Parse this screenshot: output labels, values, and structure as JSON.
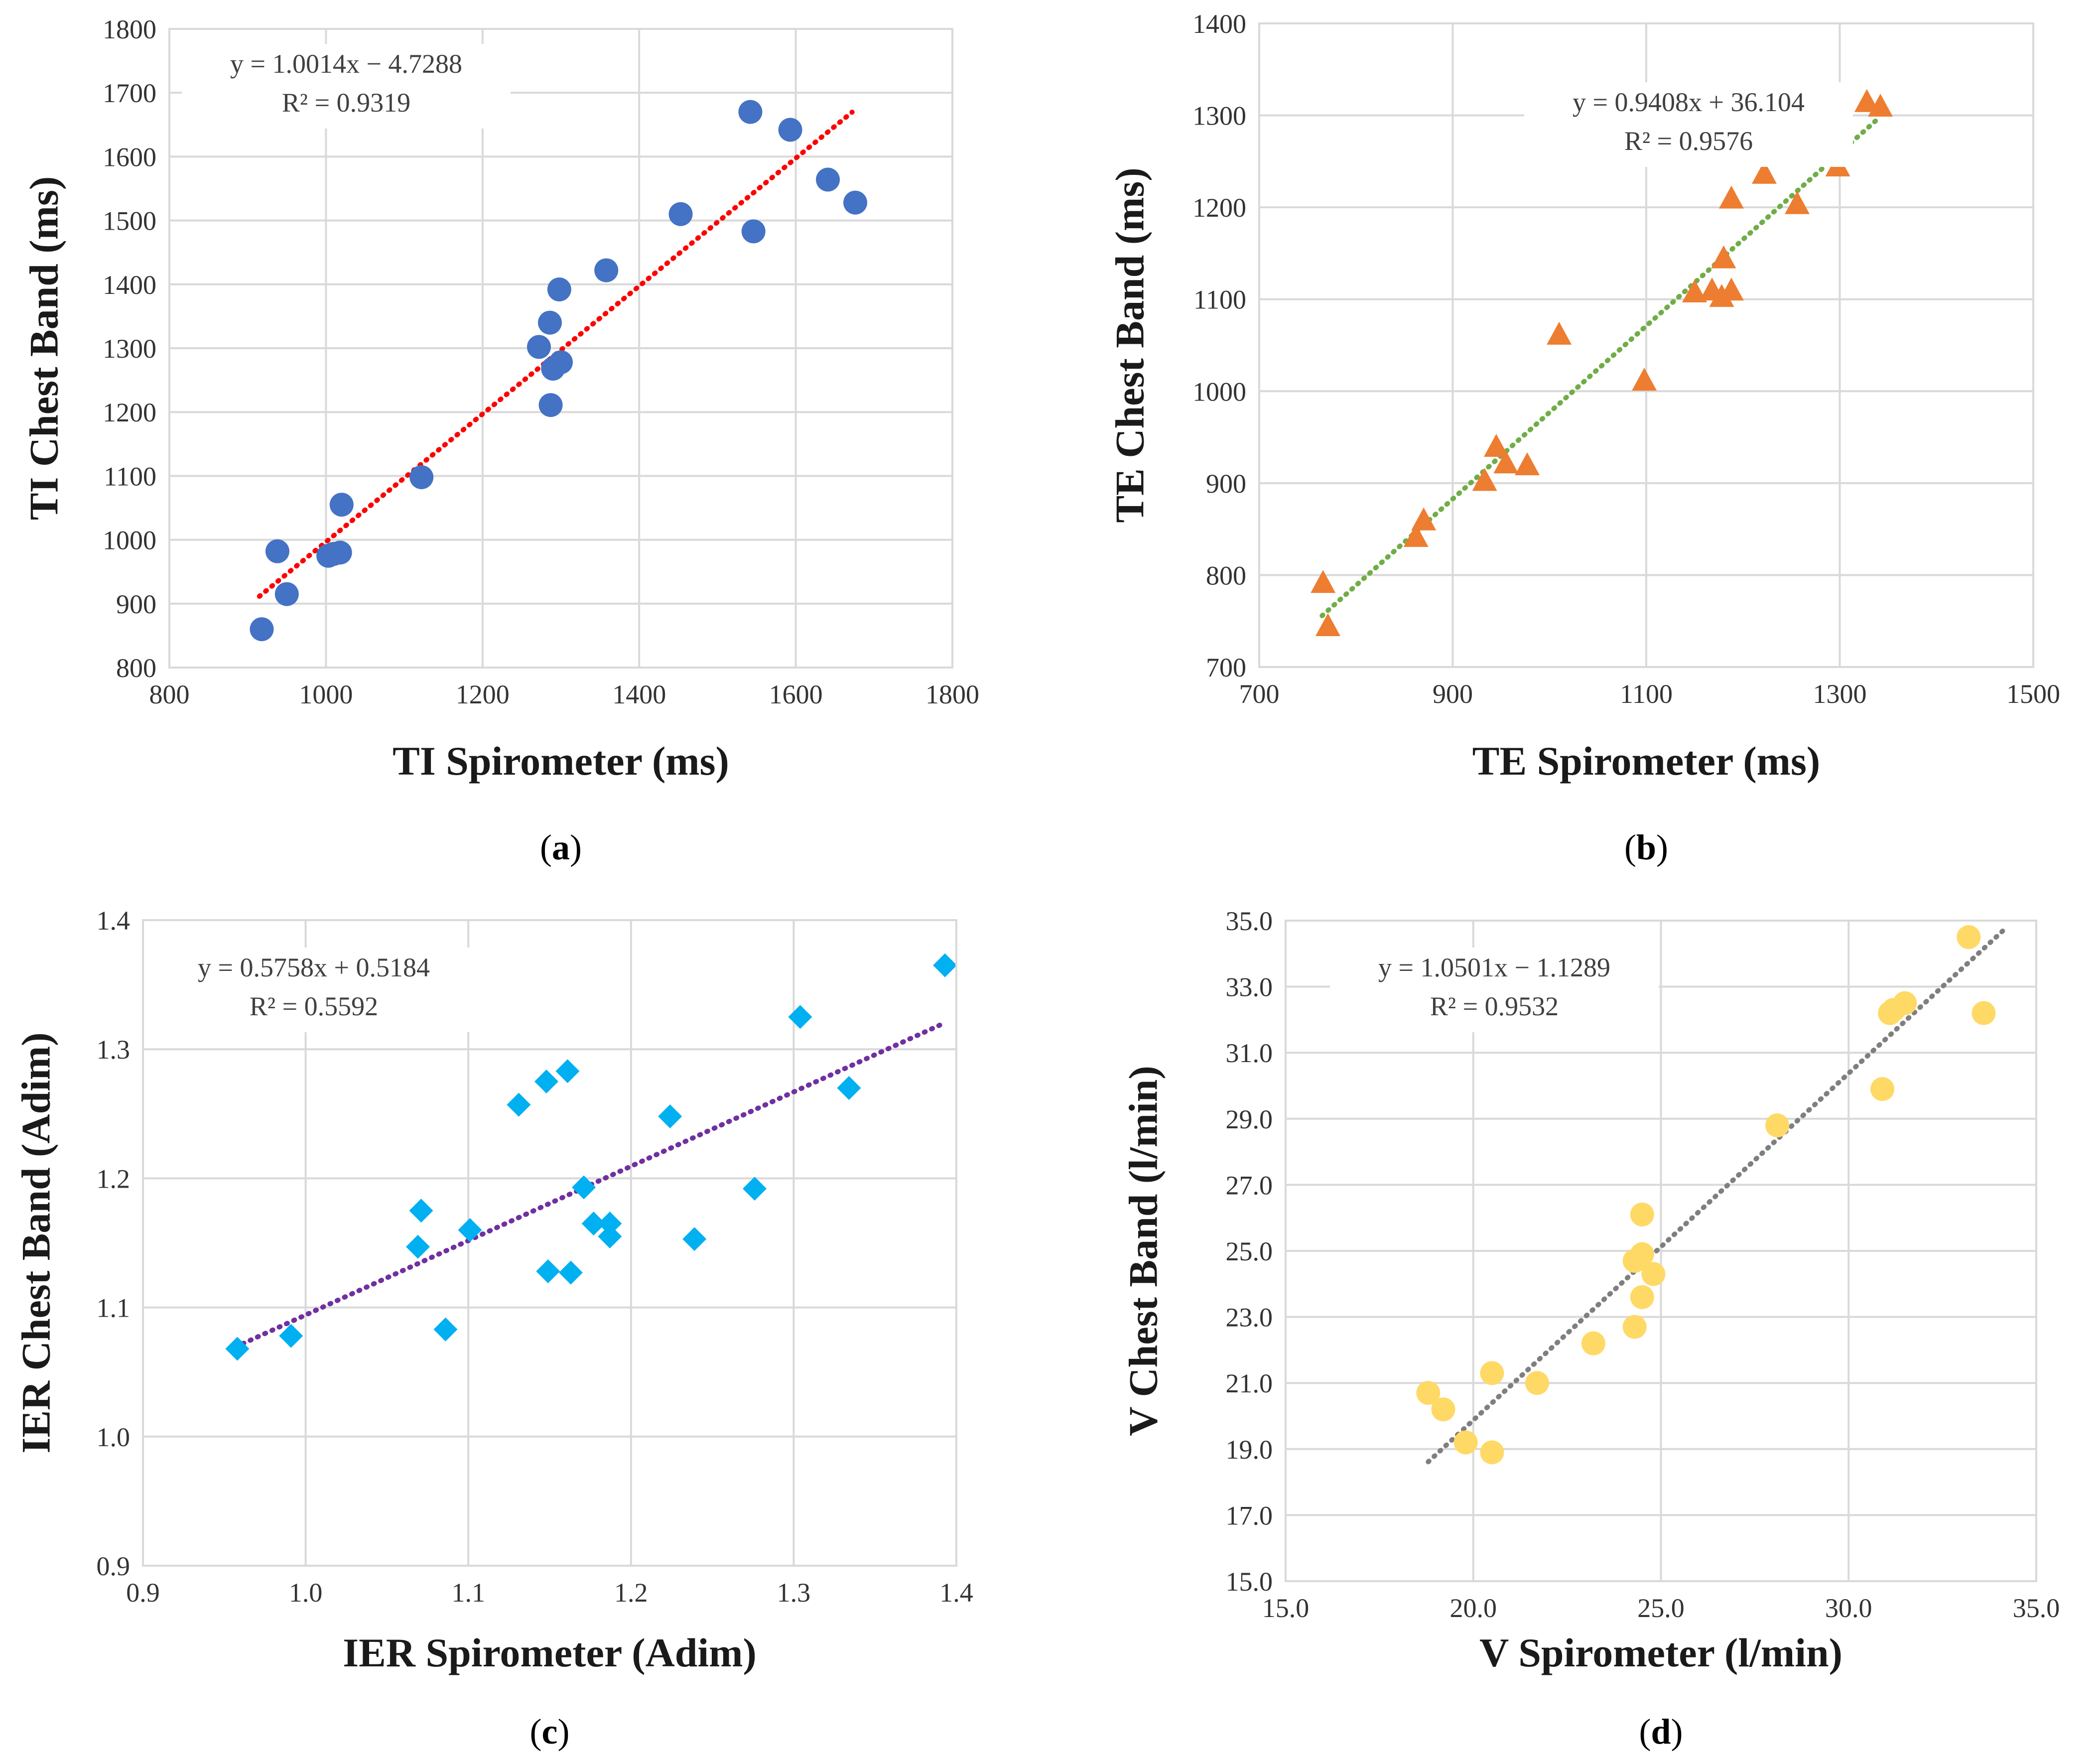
{
  "chart_data": [
    {
      "id": "a",
      "type": "scatter",
      "panel_label": "(a)",
      "xlabel": "TI Spirometer (ms)",
      "ylabel": "TI Chest Band (ms)",
      "xlim": [
        800,
        1800
      ],
      "ylim": [
        800,
        1800
      ],
      "xticks": [
        800,
        1000,
        1200,
        1400,
        1600,
        1800
      ],
      "yticks": [
        800,
        900,
        1000,
        1100,
        1200,
        1300,
        1400,
        1500,
        1600,
        1700,
        1800
      ],
      "tick_decimals": 0,
      "grid": true,
      "marker": "circle",
      "marker_color": "#4472C4",
      "trend_color": "#FF0000",
      "equation": "y = 1.0014x − 4.7288",
      "r_squared": "R² = 0.9319",
      "trendline": {
        "slope": 1.0014,
        "intercept": -4.7288,
        "x_range": [
          915,
          1672
        ]
      },
      "points": [
        [
          918,
          860
        ],
        [
          950,
          915
        ],
        [
          938,
          982
        ],
        [
          1003,
          975
        ],
        [
          1010,
          978
        ],
        [
          1018,
          980
        ],
        [
          1020,
          1055
        ],
        [
          1122,
          1098
        ],
        [
          1272,
          1302
        ],
        [
          1286,
          1340
        ],
        [
          1290,
          1268
        ],
        [
          1298,
          1392
        ],
        [
          1300,
          1278
        ],
        [
          1287,
          1211
        ],
        [
          1358,
          1422
        ],
        [
          1453,
          1510
        ],
        [
          1542,
          1670
        ],
        [
          1546,
          1483
        ],
        [
          1593,
          1642
        ],
        [
          1641,
          1564
        ],
        [
          1676,
          1528
        ]
      ]
    },
    {
      "id": "b",
      "type": "scatter",
      "panel_label": "(b)",
      "xlabel": "TE Spirometer (ms)",
      "ylabel": "TE Chest Band (ms)",
      "xlim": [
        700,
        1500
      ],
      "ylim": [
        700,
        1400
      ],
      "xticks": [
        700,
        900,
        1100,
        1300,
        1500
      ],
      "yticks": [
        700,
        800,
        900,
        1000,
        1100,
        1200,
        1300,
        1400
      ],
      "tick_decimals": 0,
      "grid": true,
      "marker": "triangle",
      "marker_color": "#ED7D31",
      "trend_color": "#70AD47",
      "equation": "y = 0.9408x + 36.104",
      "r_squared": "R² = 0.9576",
      "trendline": {
        "slope": 0.9408,
        "intercept": 36.104,
        "x_range": [
          765,
          1342
        ]
      },
      "points": [
        [
          766,
          792
        ],
        [
          771,
          745
        ],
        [
          862,
          842
        ],
        [
          870,
          860
        ],
        [
          933,
          903
        ],
        [
          945,
          940
        ],
        [
          955,
          922
        ],
        [
          977,
          920
        ],
        [
          1010,
          1062
        ],
        [
          1098,
          1012
        ],
        [
          1150,
          1108
        ],
        [
          1168,
          1110
        ],
        [
          1178,
          1103
        ],
        [
          1180,
          1145
        ],
        [
          1188,
          1110
        ],
        [
          1188,
          1210
        ],
        [
          1222,
          1237
        ],
        [
          1256,
          1204
        ],
        [
          1298,
          1245
        ],
        [
          1328,
          1315
        ],
        [
          1342,
          1310
        ]
      ]
    },
    {
      "id": "c",
      "type": "scatter",
      "panel_label": "(c)",
      "xlabel": "IER Spirometer (Adim)",
      "ylabel": "IER Chest Band (Adim)",
      "xlim": [
        0.9,
        1.4
      ],
      "ylim": [
        0.9,
        1.4
      ],
      "xticks": [
        0.9,
        1.0,
        1.1,
        1.2,
        1.3,
        1.4
      ],
      "yticks": [
        0.9,
        1.0,
        1.1,
        1.2,
        1.3,
        1.4
      ],
      "tick_decimals": 1,
      "grid": true,
      "marker": "diamond",
      "marker_color": "#00B0F0",
      "trend_color": "#7030A0",
      "equation": "y = 0.5758x + 0.5184",
      "r_squared": "R² = 0.5592",
      "trendline": {
        "slope": 0.5758,
        "intercept": 0.5184,
        "x_range": [
          0.957,
          1.392
        ]
      },
      "points": [
        [
          0.958,
          1.068
        ],
        [
          0.991,
          1.078
        ],
        [
          1.069,
          1.147
        ],
        [
          1.071,
          1.175
        ],
        [
          1.086,
          1.083
        ],
        [
          1.101,
          1.16
        ],
        [
          1.131,
          1.257
        ],
        [
          1.148,
          1.275
        ],
        [
          1.149,
          1.128
        ],
        [
          1.161,
          1.283
        ],
        [
          1.163,
          1.127
        ],
        [
          1.171,
          1.193
        ],
        [
          1.177,
          1.165
        ],
        [
          1.187,
          1.165
        ],
        [
          1.187,
          1.155
        ],
        [
          1.224,
          1.248
        ],
        [
          1.239,
          1.153
        ],
        [
          1.276,
          1.192
        ],
        [
          1.304,
          1.325
        ],
        [
          1.334,
          1.27
        ],
        [
          1.393,
          1.365
        ]
      ]
    },
    {
      "id": "d",
      "type": "scatter",
      "panel_label": "(d)",
      "xlabel": "V Spirometer (l/min)",
      "ylabel": "V Chest Band (l/min)",
      "xlim": [
        15,
        35
      ],
      "ylim": [
        15,
        35
      ],
      "xticks": [
        15,
        20,
        25,
        30,
        35
      ],
      "yticks": [
        15,
        17,
        19,
        21,
        23,
        25,
        27,
        29,
        31,
        33,
        35
      ],
      "tick_decimals": 1,
      "grid": true,
      "marker": "circle",
      "marker_color": "#FFD966",
      "trend_color": "#7F7F7F",
      "equation": "y = 1.0501x − 1.1289",
      "r_squared": "R² = 0.9532",
      "trendline": {
        "slope": 1.0501,
        "intercept": -1.1289,
        "x_range": [
          18.8,
          34.2
        ]
      },
      "points": [
        [
          18.8,
          20.7
        ],
        [
          19.2,
          20.2
        ],
        [
          19.8,
          19.2
        ],
        [
          20.5,
          21.3
        ],
        [
          20.5,
          18.9
        ],
        [
          21.7,
          21.0
        ],
        [
          23.2,
          22.2
        ],
        [
          24.3,
          22.7
        ],
        [
          24.3,
          24.7
        ],
        [
          24.5,
          24.9
        ],
        [
          24.5,
          26.1
        ],
        [
          24.5,
          23.6
        ],
        [
          24.8,
          24.3
        ],
        [
          28.1,
          28.8
        ],
        [
          30.9,
          29.9
        ],
        [
          31.1,
          32.2
        ],
        [
          31.2,
          32.3
        ],
        [
          31.5,
          32.5
        ],
        [
          33.2,
          34.5
        ],
        [
          33.6,
          32.2
        ]
      ]
    }
  ]
}
